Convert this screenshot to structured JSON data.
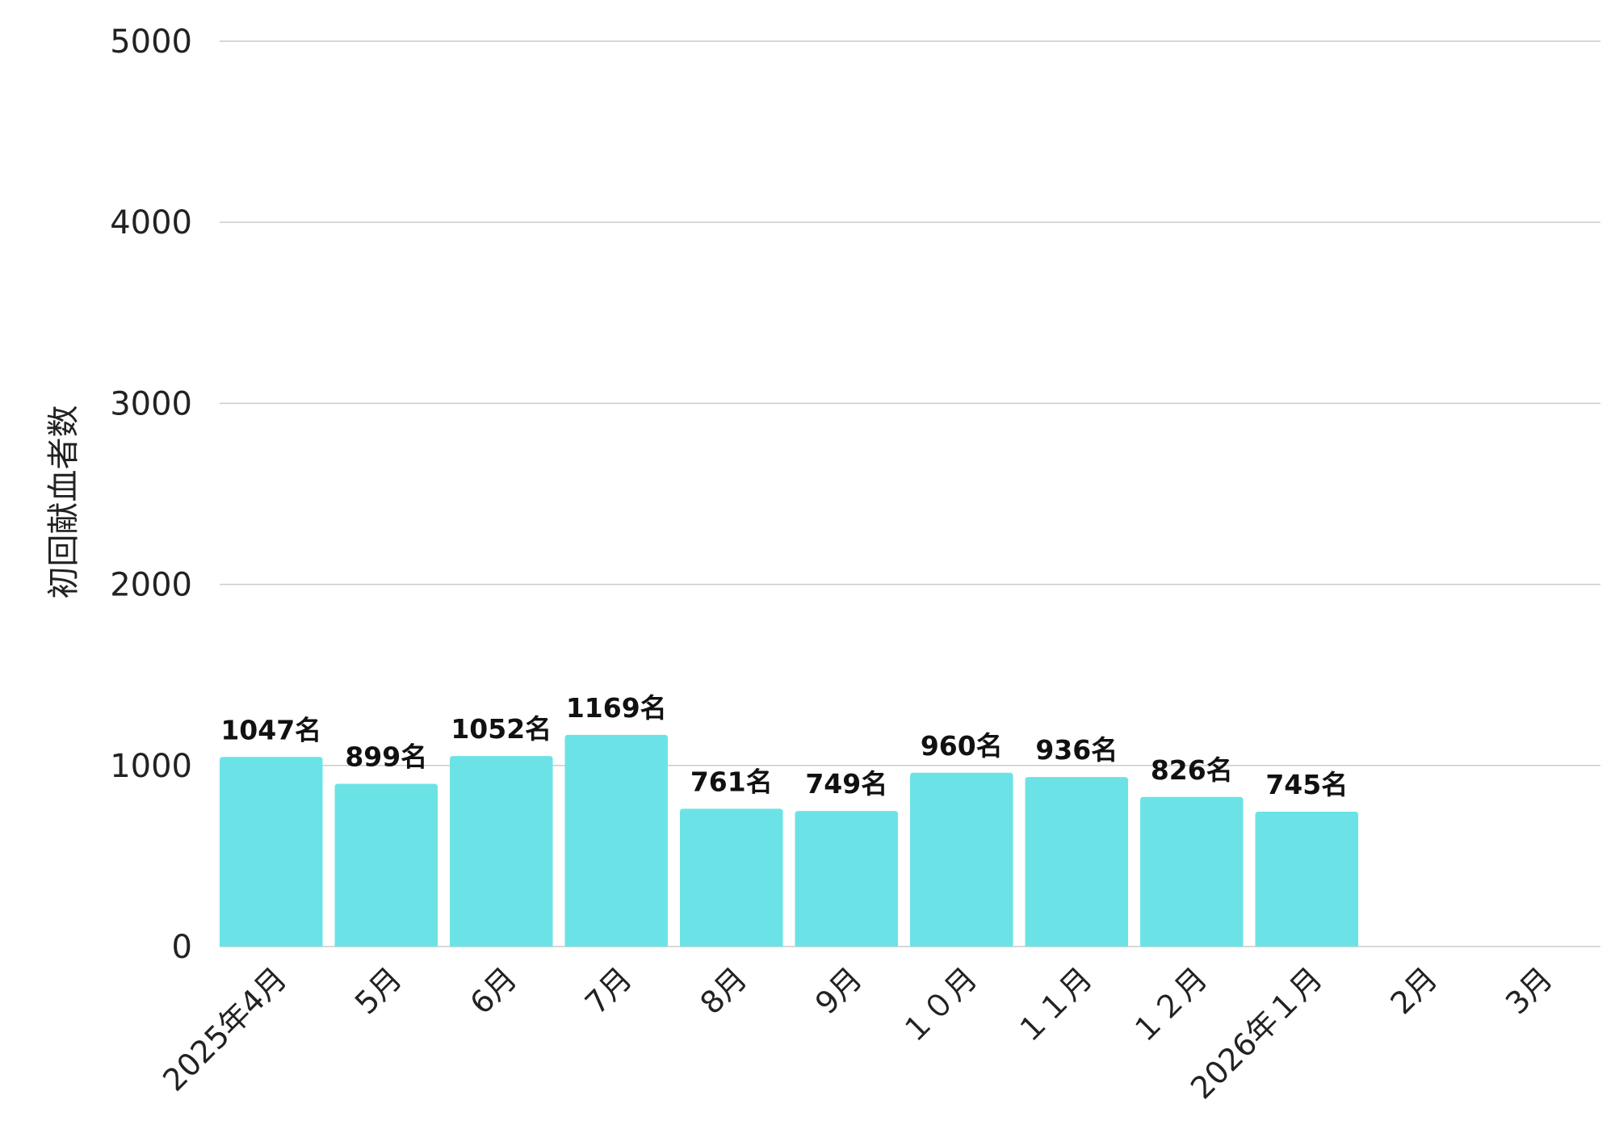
{
  "chart_data": {
    "type": "bar",
    "ylabel": "初回献血者数",
    "xlabel": "",
    "ylim": [
      0,
      5000
    ],
    "yticks": [
      0,
      1000,
      2000,
      3000,
      4000,
      5000
    ],
    "grid": true,
    "categories": [
      "2025年4月",
      "5月",
      "6月",
      "7月",
      "8月",
      "9月",
      "１０月",
      "１１月",
      "１２月",
      "2026年１月",
      "2月",
      "3月"
    ],
    "values": [
      1047,
      899,
      1052,
      1169,
      761,
      749,
      960,
      936,
      826,
      745,
      null,
      null
    ],
    "data_labels": [
      "1047名",
      "899名",
      "1052名",
      "1169名",
      "761名",
      "749名",
      "960名",
      "936名",
      "826名",
      "745名",
      "",
      ""
    ],
    "bar_color": "#6be3e6",
    "grid_color": "#cccccc"
  }
}
